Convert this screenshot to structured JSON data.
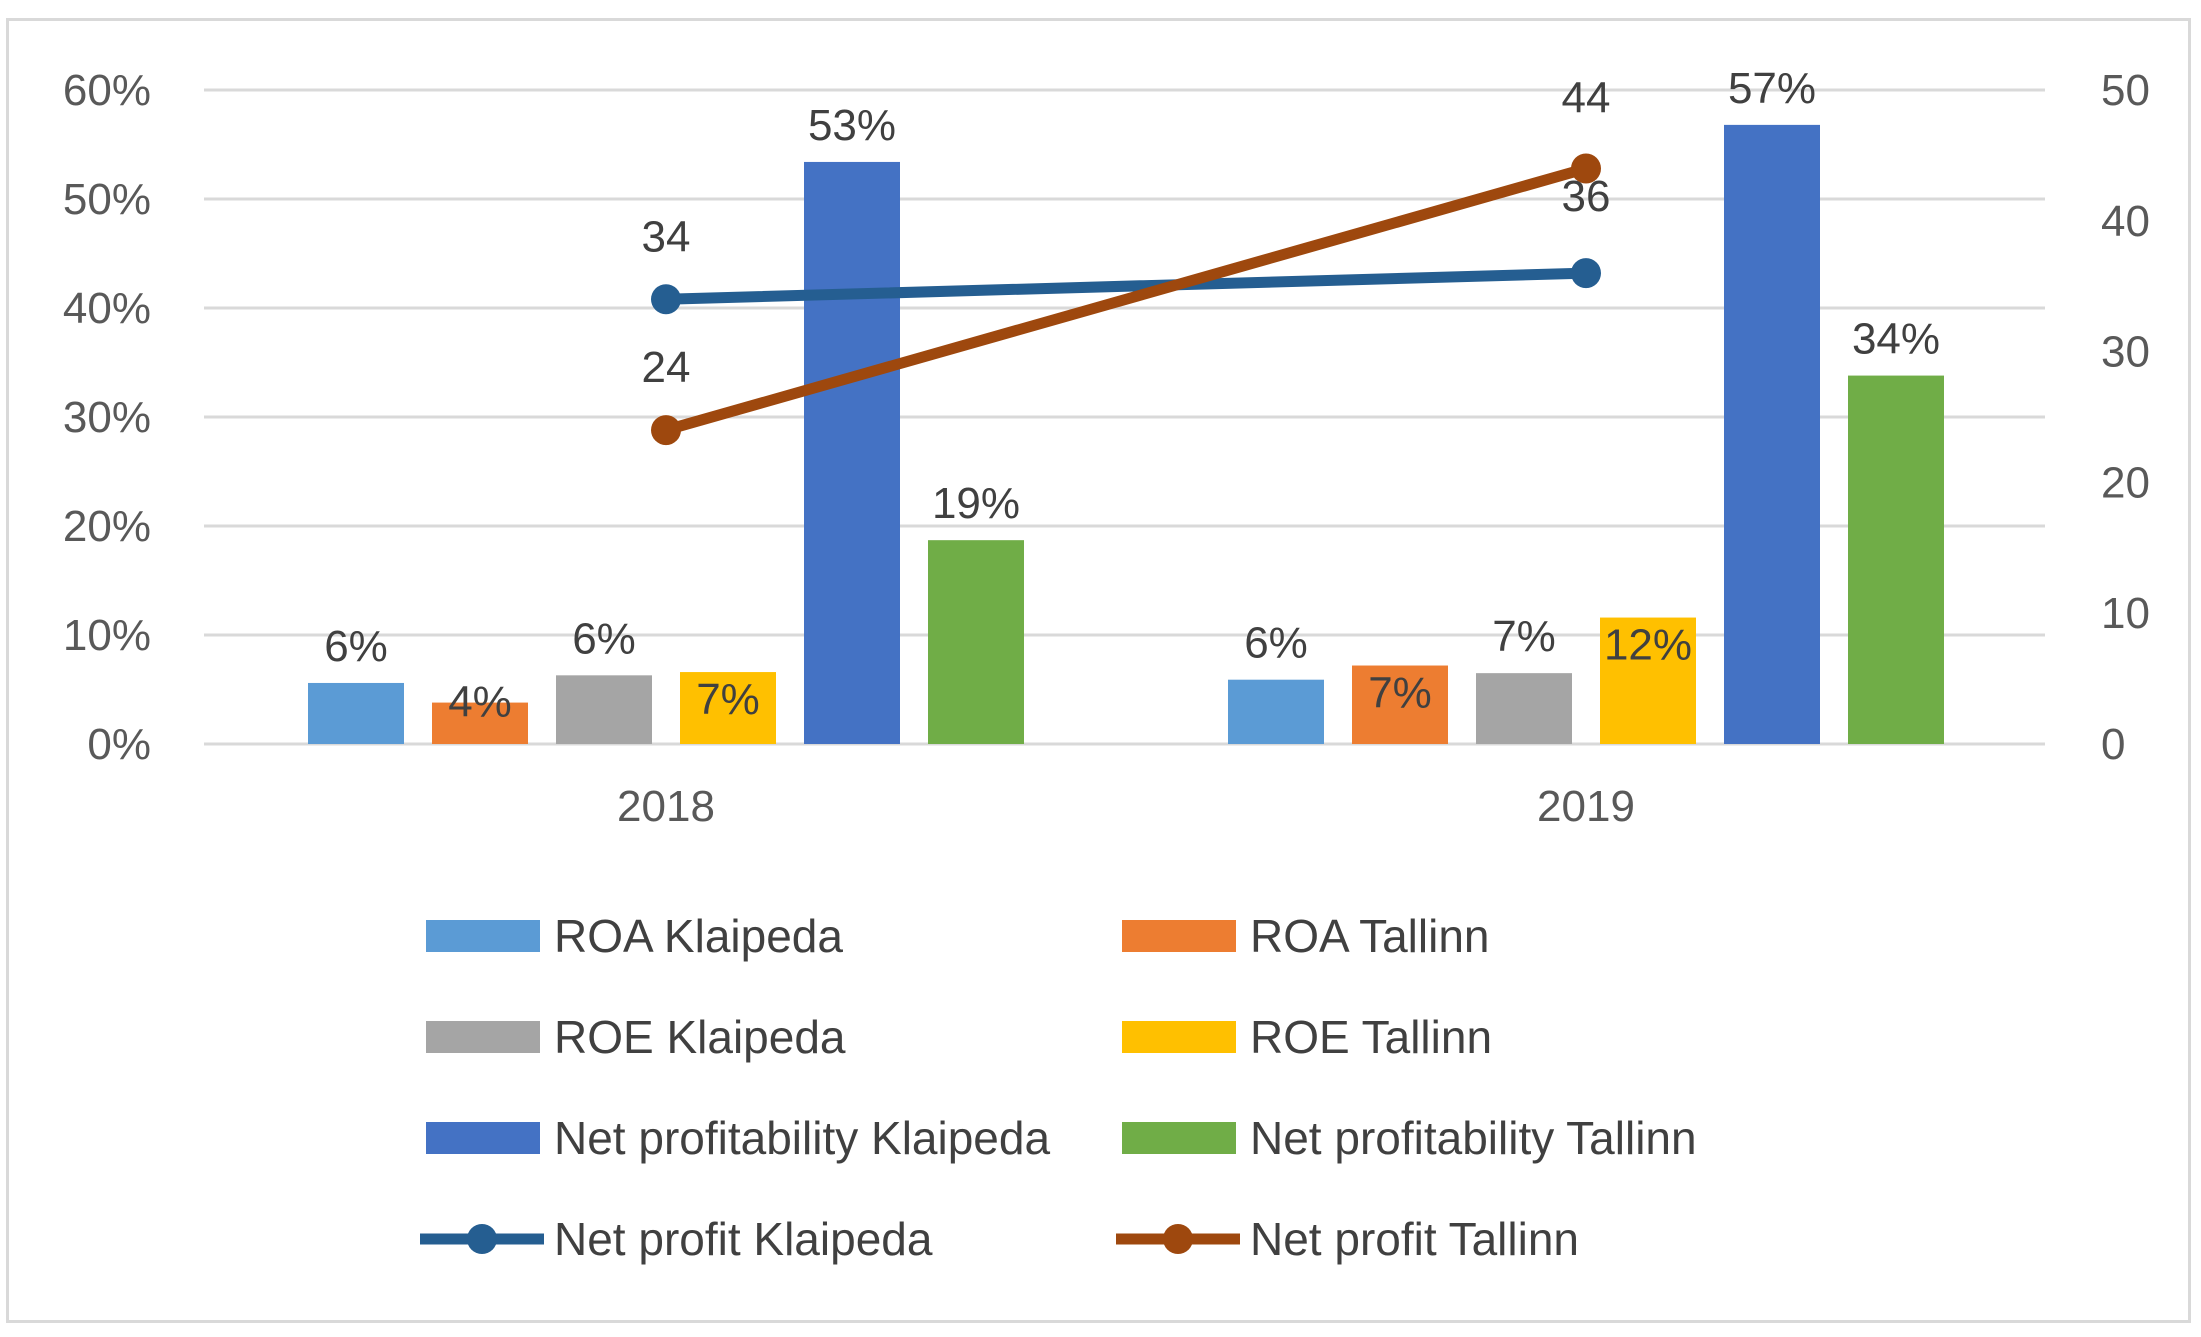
{
  "chart_data": {
    "type": "bar",
    "categories": [
      "2018",
      "2019"
    ],
    "series": [
      {
        "name": "ROA Klaipeda",
        "kind": "bar",
        "axis": "left",
        "color": "#5b9bd5",
        "values": [
          5.6,
          5.9
        ],
        "labels": [
          "6%",
          "6%"
        ]
      },
      {
        "name": "ROA Tallinn",
        "kind": "bar",
        "axis": "left",
        "color": "#ed7d31",
        "values": [
          3.8,
          7.2
        ],
        "labels": [
          "4%",
          "7%"
        ]
      },
      {
        "name": "ROE Klaipeda",
        "kind": "bar",
        "axis": "left",
        "color": "#a5a5a5",
        "values": [
          6.3,
          6.5
        ],
        "labels": [
          "6%",
          "7%"
        ]
      },
      {
        "name": "ROE Tallinn",
        "kind": "bar",
        "axis": "left",
        "color": "#ffc000",
        "values": [
          6.6,
          11.6
        ],
        "labels": [
          "7%",
          "12%"
        ]
      },
      {
        "name": "Net profitability Klaipeda",
        "kind": "bar",
        "axis": "left",
        "color": "#4472c4",
        "values": [
          53.4,
          56.8
        ],
        "labels": [
          "53%",
          "57%"
        ]
      },
      {
        "name": "Net profitability Tallinn",
        "kind": "bar",
        "axis": "left",
        "color": "#70ad47",
        "values": [
          18.7,
          33.8
        ],
        "labels": [
          "19%",
          "34%"
        ]
      },
      {
        "name": "Net profit Klaipeda",
        "kind": "line",
        "axis": "right",
        "color": "#255e91",
        "values": [
          34,
          36
        ],
        "labels": [
          "34",
          "36"
        ]
      },
      {
        "name": "Net profit Tallinn",
        "kind": "line",
        "axis": "right",
        "color": "#9e480e",
        "values": [
          24,
          44
        ],
        "labels": [
          "24",
          "44"
        ]
      }
    ],
    "y_left": {
      "min": 0,
      "max": 60,
      "ticks": [
        "0%",
        "10%",
        "20%",
        "30%",
        "40%",
        "50%",
        "60%"
      ]
    },
    "y_right": {
      "min": 0,
      "max": 50,
      "ticks": [
        "0",
        "10",
        "20",
        "30",
        "40",
        "50"
      ]
    },
    "grid": true,
    "legend_position": "bottom",
    "title": "",
    "xlabel": "",
    "ylabel": ""
  }
}
